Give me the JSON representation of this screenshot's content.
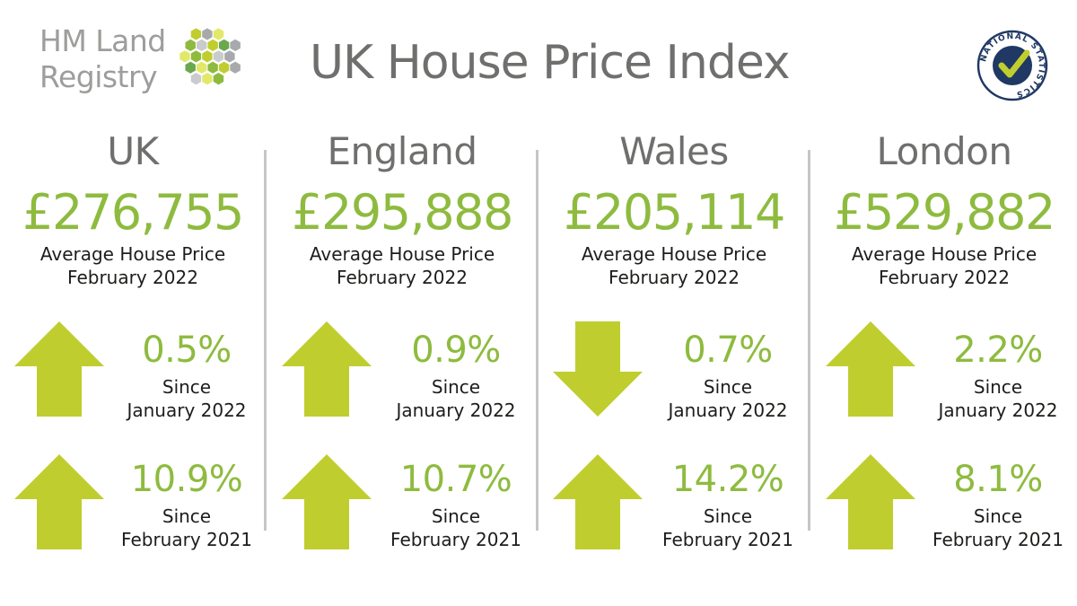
{
  "header": {
    "logo_line1": "HM Land",
    "logo_line2": "Registry",
    "title": "UK House Price Index",
    "badge_text": "NATIONAL STATISTICS"
  },
  "colors": {
    "accent_green": "#8ebb3f",
    "arrow_green": "#bfce2e",
    "title_gray": "#6f6f6e",
    "logo_gray": "#9d9d9c"
  },
  "regions": [
    {
      "name": "UK",
      "price": "£276,755",
      "caption_line1": "Average House Price",
      "caption_line2": "February 2022",
      "monthly": {
        "direction": "up",
        "change": "0.5%",
        "since": "Since",
        "period": "January 2022"
      },
      "annual": {
        "direction": "up",
        "change": "10.9%",
        "since": "Since",
        "period": "February 2021"
      }
    },
    {
      "name": "England",
      "price": "£295,888",
      "caption_line1": "Average House Price",
      "caption_line2": "February 2022",
      "monthly": {
        "direction": "up",
        "change": "0.9%",
        "since": "Since",
        "period": "January 2022"
      },
      "annual": {
        "direction": "up",
        "change": "10.7%",
        "since": "Since",
        "period": "February 2021"
      }
    },
    {
      "name": "Wales",
      "price": "£205,114",
      "caption_line1": "Average House Price",
      "caption_line2": "February 2022",
      "monthly": {
        "direction": "down",
        "change": "0.7%",
        "since": "Since",
        "period": "January 2022"
      },
      "annual": {
        "direction": "up",
        "change": "14.2%",
        "since": "Since",
        "period": "February 2021"
      }
    },
    {
      "name": "London",
      "price": "£529,882",
      "caption_line1": "Average House Price",
      "caption_line2": "February 2022",
      "monthly": {
        "direction": "up",
        "change": "2.2%",
        "since": "Since",
        "period": "January 2022"
      },
      "annual": {
        "direction": "up",
        "change": "8.1%",
        "since": "Since",
        "period": "February 2021"
      }
    }
  ]
}
